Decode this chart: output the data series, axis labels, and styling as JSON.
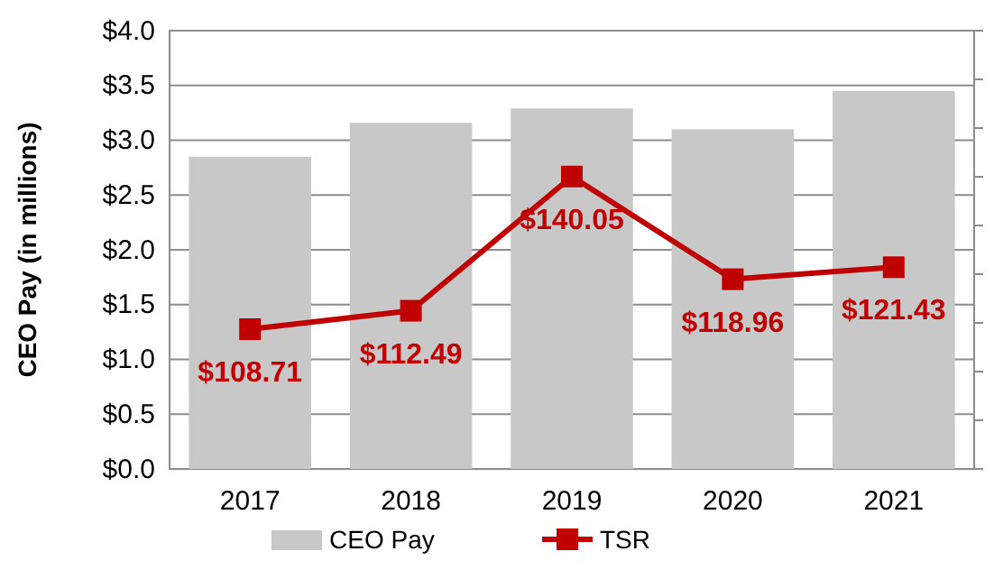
{
  "chart_data": {
    "type": "bar",
    "categories": [
      "2017",
      "2018",
      "2019",
      "2020",
      "2021"
    ],
    "series": [
      {
        "name": "CEO Pay",
        "color": "#c8c8c8",
        "values": [
          2.85,
          3.16,
          3.29,
          3.1,
          3.45
        ]
      },
      {
        "name": "TSR",
        "type": "line",
        "axis": "y2",
        "color": "#c00000",
        "values": [
          108.71,
          112.49,
          140.05,
          118.96,
          121.43
        ],
        "value_labels": [
          "$108.71",
          "$112.49",
          "$140.05",
          "$118.96",
          "$121.43"
        ],
        "marker": "square",
        "line_style": "solid"
      }
    ],
    "ylabel": "CEO Pay (in millions)",
    "ylim": [
      0,
      4
    ],
    "yticks": [
      {
        "value": 0,
        "label": "$0.0"
      },
      {
        "value": 0.5,
        "label": "$0.5"
      },
      {
        "value": 1,
        "label": "$1.0"
      },
      {
        "value": 1.5,
        "label": "$1.5"
      },
      {
        "value": 2,
        "label": "$2.0"
      },
      {
        "value": 2.5,
        "label": "$2.5"
      },
      {
        "value": 3,
        "label": "$3.0"
      },
      {
        "value": 3.5,
        "label": "$3.5"
      },
      {
        "value": 4,
        "label": "$4.0"
      }
    ],
    "y2lim": [
      80,
      170
    ],
    "y2ticks": [
      {
        "value": 80,
        "label": null
      },
      {
        "value": 90,
        "label": null
      },
      {
        "value": 100,
        "label": null
      },
      {
        "value": 110,
        "label": null
      },
      {
        "value": 120,
        "label": null
      },
      {
        "value": 130,
        "label": null
      },
      {
        "value": 140,
        "label": null
      },
      {
        "value": 150,
        "label": null
      },
      {
        "value": 160,
        "label": null
      },
      {
        "value": 170,
        "label": null
      }
    ],
    "grid": "y",
    "legend": "bottom"
  }
}
